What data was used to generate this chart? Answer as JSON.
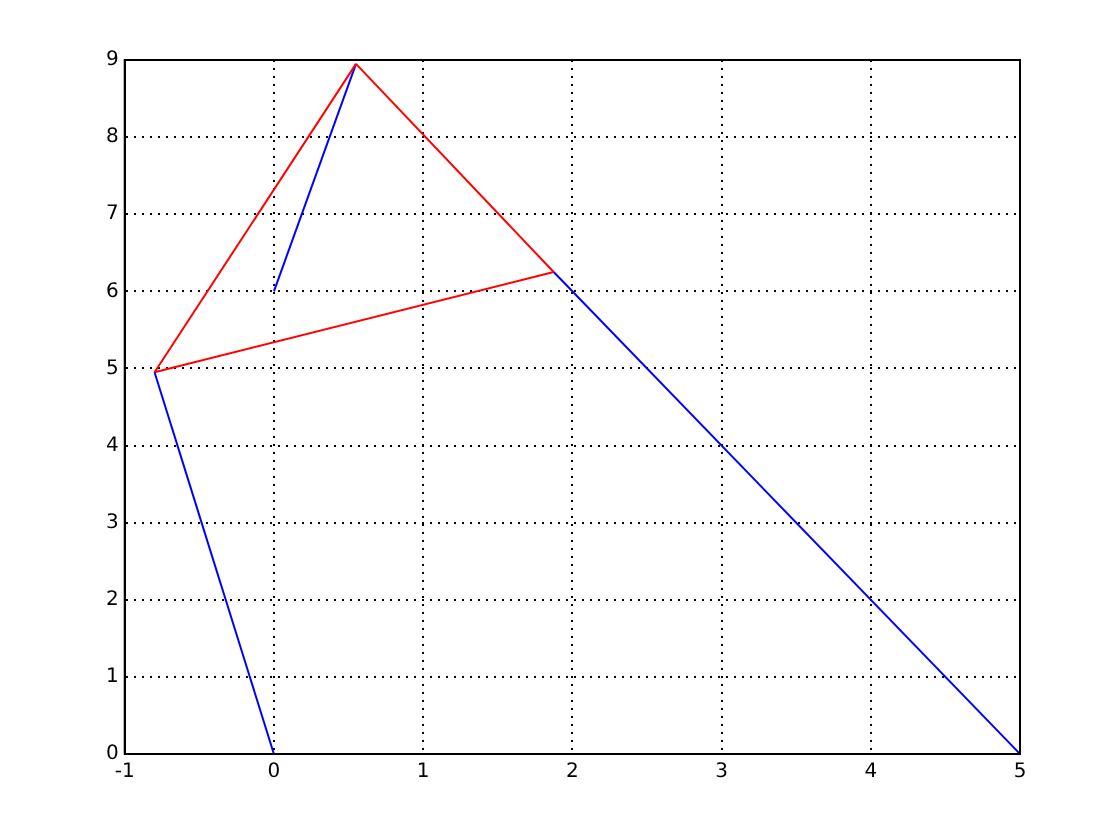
{
  "chart_data": {
    "type": "line",
    "xlim": [
      -1,
      5
    ],
    "ylim": [
      0,
      9
    ],
    "xticks": [
      -1,
      0,
      1,
      2,
      3,
      4,
      5
    ],
    "yticks": [
      0,
      1,
      2,
      3,
      4,
      5,
      6,
      7,
      8,
      9
    ],
    "grid": true,
    "legend": false,
    "marker": "none",
    "line_style": "solid",
    "series": [
      {
        "color": "#0000ff",
        "x": [
          0,
          -0.8
        ],
        "values": [
          0,
          4.95
        ]
      },
      {
        "color": "#ff0000",
        "x": [
          -0.8,
          0.55
        ],
        "values": [
          4.95,
          8.95
        ]
      },
      {
        "color": "#ff0000",
        "x": [
          0.55,
          1.875
        ],
        "values": [
          8.95,
          6.25
        ]
      },
      {
        "color": "#ff0000",
        "x": [
          -0.8,
          1.875
        ],
        "values": [
          4.95,
          6.25
        ]
      },
      {
        "color": "#0000ff",
        "x": [
          1.875,
          5
        ],
        "values": [
          6.25,
          0
        ]
      },
      {
        "color": "#0000ff",
        "x": [
          0,
          0.55
        ],
        "values": [
          6,
          8.95
        ]
      }
    ]
  }
}
